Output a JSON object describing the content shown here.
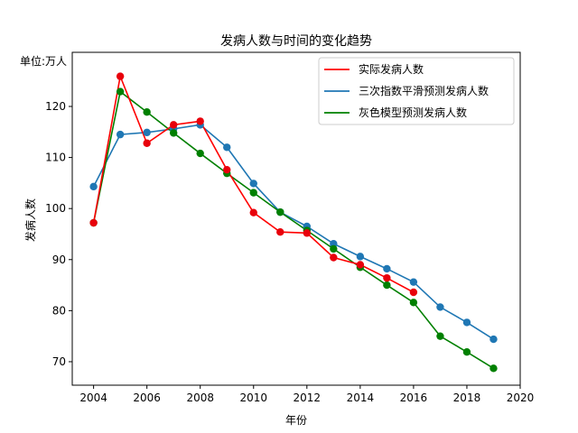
{
  "chart_data": {
    "type": "line",
    "title": "发病人数与时间的变化趋势",
    "xlabel": "年份",
    "ylabel": "发病人数",
    "unit_label": "单位:万人",
    "xlim": [
      2003.2,
      2020
    ],
    "ylim": [
      65.4,
      130.6
    ],
    "x_ticks": [
      2004,
      2006,
      2008,
      2010,
      2012,
      2014,
      2016,
      2018,
      2020
    ],
    "y_ticks": [
      70,
      80,
      90,
      100,
      110,
      120
    ],
    "legend_position": "top-right",
    "grid": false,
    "series": [
      {
        "name": "实际发病人数",
        "color": "#ff0000",
        "marker_color": "#e8000b",
        "x": [
          2004,
          2005,
          2006,
          2007,
          2008,
          2009,
          2010,
          2011,
          2012,
          2013,
          2014,
          2015,
          2016
        ],
        "values": [
          97.2,
          125.9,
          112.8,
          116.4,
          117.1,
          107.6,
          99.2,
          95.4,
          95.2,
          90.4,
          89.0,
          86.4,
          83.6
        ]
      },
      {
        "name": "三次指数平滑预测发病人数",
        "color": "#1f77b4",
        "marker_color": "#1f77b4",
        "x": [
          2004,
          2005,
          2006,
          2007,
          2008,
          2009,
          2010,
          2011,
          2012,
          2013,
          2014,
          2015,
          2016,
          2017,
          2018,
          2019
        ],
        "values": [
          104.3,
          114.5,
          114.9,
          115.6,
          116.4,
          112.0,
          104.9,
          99.3,
          96.5,
          93.1,
          90.6,
          88.2,
          85.6,
          80.7,
          77.7,
          74.4
        ]
      },
      {
        "name": "灰色模型预测发病人数",
        "color": "#008000",
        "marker_color": "#008000",
        "x": [
          2004,
          2005,
          2006,
          2007,
          2008,
          2009,
          2010,
          2011,
          2012,
          2013,
          2014,
          2015,
          2016,
          2017,
          2018,
          2019
        ],
        "values": [
          97.2,
          122.9,
          118.9,
          114.8,
          110.8,
          106.9,
          103.1,
          99.3,
          95.7,
          92.1,
          88.5,
          85.0,
          81.6,
          75.0,
          71.9,
          68.7
        ]
      }
    ]
  }
}
